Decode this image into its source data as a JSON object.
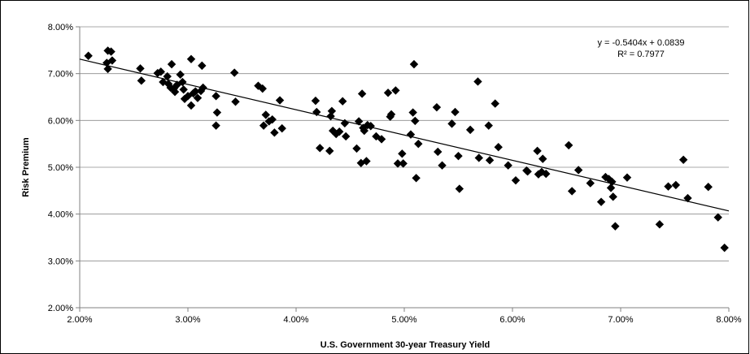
{
  "chart_data": {
    "type": "scatter",
    "xlabel": "U.S. Government 30-year Treasury Yield",
    "ylabel": "Risk Premium",
    "xlim": [
      0.02,
      0.08
    ],
    "ylim": [
      0.02,
      0.08
    ],
    "x_ticks": [
      0.02,
      0.03,
      0.04,
      0.05,
      0.06,
      0.07,
      0.08
    ],
    "y_ticks": [
      0.02,
      0.03,
      0.04,
      0.05,
      0.06,
      0.07,
      0.08
    ],
    "x_tick_labels": [
      "2.00%",
      "3.00%",
      "4.00%",
      "5.00%",
      "6.00%",
      "7.00%",
      "8.00%"
    ],
    "y_tick_labels": [
      "2.00%",
      "3.00%",
      "4.00%",
      "5.00%",
      "6.00%",
      "7.00%",
      "8.00%"
    ],
    "grid": "horizontal",
    "marker": "diamond",
    "marker_color": "#000000",
    "trendline": {
      "slope": -0.5404,
      "intercept": 0.0839,
      "equation_label": "y = -0.5404x + 0.0839",
      "r2_label": "R² = 0.7977"
    },
    "points": [
      [
        0.0208,
        0.0738
      ],
      [
        0.0225,
        0.0723
      ],
      [
        0.0226,
        0.0749
      ],
      [
        0.0226,
        0.071
      ],
      [
        0.0229,
        0.0747
      ],
      [
        0.023,
        0.0728
      ],
      [
        0.0256,
        0.0711
      ],
      [
        0.0257,
        0.0685
      ],
      [
        0.0272,
        0.0701
      ],
      [
        0.0275,
        0.0704
      ],
      [
        0.0277,
        0.0682
      ],
      [
        0.0281,
        0.0694
      ],
      [
        0.0282,
        0.0678
      ],
      [
        0.0284,
        0.067
      ],
      [
        0.0285,
        0.072
      ],
      [
        0.0287,
        0.0668
      ],
      [
        0.0288,
        0.0661
      ],
      [
        0.029,
        0.0676
      ],
      [
        0.0293,
        0.0698
      ],
      [
        0.0295,
        0.0682
      ],
      [
        0.0296,
        0.0666
      ],
      [
        0.0297,
        0.0646
      ],
      [
        0.03,
        0.0652
      ],
      [
        0.0303,
        0.0731
      ],
      [
        0.0303,
        0.0632
      ],
      [
        0.0305,
        0.0658
      ],
      [
        0.0307,
        0.0662
      ],
      [
        0.0309,
        0.0648
      ],
      [
        0.0312,
        0.0663
      ],
      [
        0.0313,
        0.0717
      ],
      [
        0.0314,
        0.067
      ],
      [
        0.0326,
        0.0652
      ],
      [
        0.0326,
        0.0589
      ],
      [
        0.0327,
        0.0617
      ],
      [
        0.0343,
        0.0702
      ],
      [
        0.0344,
        0.064
      ],
      [
        0.0365,
        0.0674
      ],
      [
        0.0369,
        0.0668
      ],
      [
        0.037,
        0.0589
      ],
      [
        0.0372,
        0.0612
      ],
      [
        0.0375,
        0.0598
      ],
      [
        0.0378,
        0.0602
      ],
      [
        0.038,
        0.0574
      ],
      [
        0.0385,
        0.0643
      ],
      [
        0.0387,
        0.0583
      ],
      [
        0.0418,
        0.0642
      ],
      [
        0.0419,
        0.0618
      ],
      [
        0.0422,
        0.0541
      ],
      [
        0.0431,
        0.0535
      ],
      [
        0.0432,
        0.0609
      ],
      [
        0.0433,
        0.062
      ],
      [
        0.0434,
        0.0578
      ],
      [
        0.0437,
        0.0571
      ],
      [
        0.044,
        0.0576
      ],
      [
        0.0443,
        0.0641
      ],
      [
        0.0445,
        0.0594
      ],
      [
        0.0446,
        0.0566
      ],
      [
        0.0456,
        0.054
      ],
      [
        0.0458,
        0.0598
      ],
      [
        0.046,
        0.0509
      ],
      [
        0.0461,
        0.0657
      ],
      [
        0.0462,
        0.0584
      ],
      [
        0.0463,
        0.0578
      ],
      [
        0.0465,
        0.0513
      ],
      [
        0.0466,
        0.059
      ],
      [
        0.0469,
        0.0588
      ],
      [
        0.0474,
        0.0566
      ],
      [
        0.0479,
        0.056
      ],
      [
        0.0485,
        0.0659
      ],
      [
        0.0487,
        0.0608
      ],
      [
        0.0488,
        0.0613
      ],
      [
        0.0492,
        0.0664
      ],
      [
        0.0494,
        0.0508
      ],
      [
        0.0498,
        0.0529
      ],
      [
        0.0499,
        0.0508
      ],
      [
        0.0506,
        0.057
      ],
      [
        0.0508,
        0.0617
      ],
      [
        0.0509,
        0.072
      ],
      [
        0.051,
        0.0599
      ],
      [
        0.0511,
        0.0477
      ],
      [
        0.0513,
        0.055
      ],
      [
        0.053,
        0.0628
      ],
      [
        0.0531,
        0.0533
      ],
      [
        0.0535,
        0.0504
      ],
      [
        0.0544,
        0.0593
      ],
      [
        0.0547,
        0.0618
      ],
      [
        0.055,
        0.0524
      ],
      [
        0.0551,
        0.0454
      ],
      [
        0.0561,
        0.058
      ],
      [
        0.0568,
        0.0683
      ],
      [
        0.0569,
        0.052
      ],
      [
        0.0578,
        0.0589
      ],
      [
        0.0579,
        0.0515
      ],
      [
        0.0584,
        0.0636
      ],
      [
        0.0587,
        0.0543
      ],
      [
        0.0596,
        0.0504
      ],
      [
        0.0603,
        0.0472
      ],
      [
        0.0613,
        0.0493
      ],
      [
        0.0614,
        0.0491
      ],
      [
        0.0623,
        0.0535
      ],
      [
        0.0624,
        0.0485
      ],
      [
        0.0627,
        0.049
      ],
      [
        0.0628,
        0.0518
      ],
      [
        0.0631,
        0.0486
      ],
      [
        0.0652,
        0.0547
      ],
      [
        0.0655,
        0.0449
      ],
      [
        0.0661,
        0.0494
      ],
      [
        0.0672,
        0.0466
      ],
      [
        0.0682,
        0.0426
      ],
      [
        0.0686,
        0.0479
      ],
      [
        0.0689,
        0.0475
      ],
      [
        0.0691,
        0.0456
      ],
      [
        0.0692,
        0.0469
      ],
      [
        0.0693,
        0.0437
      ],
      [
        0.0695,
        0.0374
      ],
      [
        0.0706,
        0.0478
      ],
      [
        0.0736,
        0.0378
      ],
      [
        0.0744,
        0.0459
      ],
      [
        0.0751,
        0.0462
      ],
      [
        0.0758,
        0.0516
      ],
      [
        0.0762,
        0.0434
      ],
      [
        0.0781,
        0.0458
      ],
      [
        0.079,
        0.0393
      ],
      [
        0.0796,
        0.0328
      ]
    ]
  }
}
